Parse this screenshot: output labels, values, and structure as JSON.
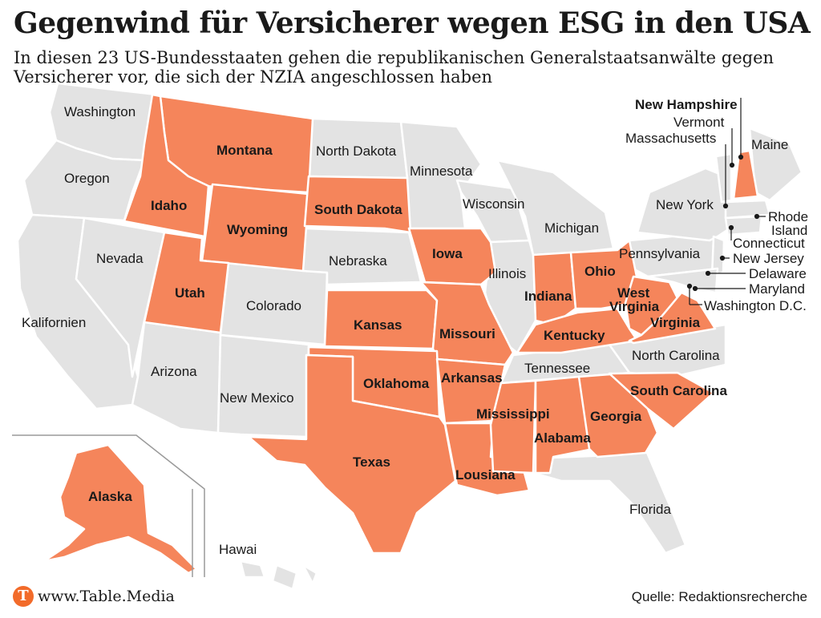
{
  "header": {
    "title": "Gegenwind für Versicherer wegen ESG in den USA",
    "subtitle": "In diesen 23 US-Bundesstaaten gehen die republikanischen Generalstaatsanwälte gegen Versicherer vor, die sich der NZIA angeschlossen haben"
  },
  "colors": {
    "highlight": "#f5855b",
    "base": "#e3e3e3",
    "border": "#ffffff",
    "text": "#1a1a1a",
    "logo": "#f26b2a"
  },
  "map": {
    "highlighted_states": [
      "Montana",
      "Idaho",
      "Wyoming",
      "South Dakota",
      "Iowa",
      "Utah",
      "Kansas",
      "Missouri",
      "Oklahoma",
      "Arkansas",
      "Texas",
      "Lousiana",
      "Mississippi",
      "Alabama",
      "Georgia",
      "South Carolina",
      "Indiana",
      "Ohio",
      "Kentucky",
      "West Virginia",
      "Virginia",
      "New Hampshire",
      "Alaska"
    ],
    "labels": {
      "washington": "Washington",
      "oregon": "Oregon",
      "kalifornien": "Kalifornien",
      "nevada": "Nevada",
      "idaho": "Idaho",
      "montana": "Montana",
      "wyoming": "Wyoming",
      "utah": "Utah",
      "arizona": "Arizona",
      "colorado": "Colorado",
      "new_mexico": "New Mexico",
      "north_dakota": "North Dakota",
      "south_dakota": "South Dakota",
      "nebraska": "Nebraska",
      "kansas": "Kansas",
      "oklahoma": "Oklahoma",
      "texas": "Texas",
      "minnesota": "Minnesota",
      "iowa": "Iowa",
      "missouri": "Missouri",
      "arkansas": "Arkansas",
      "lousiana": "Lousiana",
      "wisconsin": "Wisconsin",
      "illinois": "Illinois",
      "michigan": "Michigan",
      "indiana": "Indiana",
      "ohio": "Ohio",
      "kentucky": "Kentucky",
      "tennessee": "Tennessee",
      "mississippi": "Mississippi",
      "alabama": "Alabama",
      "georgia": "Georgia",
      "florida": "Florida",
      "south_carolina": "South Carolina",
      "north_carolina": "North Carolina",
      "virginia": "Virginia",
      "west": "West",
      "virginia2": "Virginia",
      "pennsylvania": "Pennsylvania",
      "new_york": "New York",
      "maine": "Maine",
      "new_hampshire": "New Hampshire",
      "vermont": "Vermont",
      "massachusetts": "Massachusetts",
      "rhode": "Rhode",
      "island": "Island",
      "connecticut": "Connecticut",
      "new_jersey": "New Jersey",
      "delaware": "Delaware",
      "maryland": "Maryland",
      "washington_dc": "Washington D.C.",
      "alaska": "Alaska",
      "hawaii": "Hawai"
    }
  },
  "footer": {
    "logo_letter": "T",
    "url": "www.Table.Media",
    "source": "Quelle: Redaktionsrecherche"
  }
}
